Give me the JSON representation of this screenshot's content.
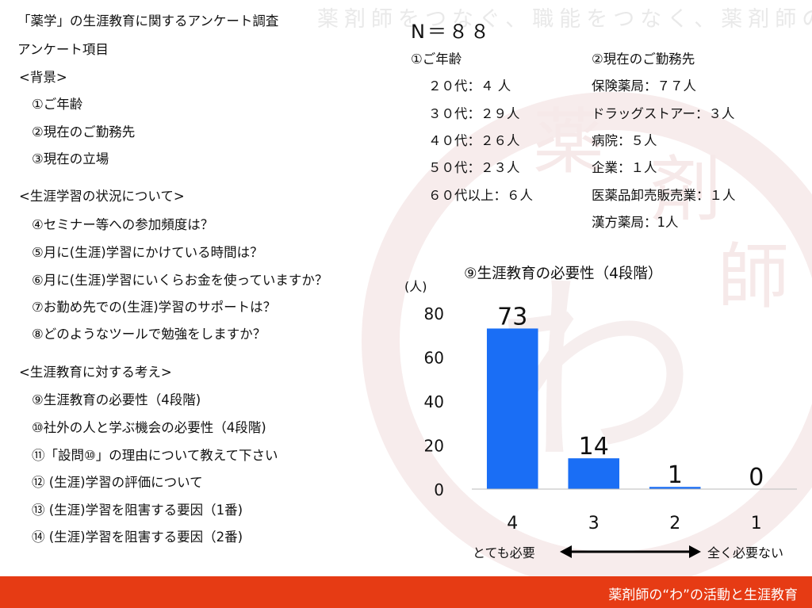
{
  "watermark": {
    "slogan": "薬剤師をつなぐ、職能をつなく、薬剤師の繋がり“わ”をつくりたい",
    "logo_chars": [
      "薬",
      "剤",
      "師",
      "わ"
    ]
  },
  "survey": {
    "title": "「薬学」の生涯教育に関するアンケート調査",
    "items_header": "アンケート項目",
    "sections": [
      {
        "heading": "<背景>",
        "items": [
          "①ご年齢",
          "②現在のご勤務先",
          "③現在の立場"
        ]
      },
      {
        "heading": "<生涯学習の状況について>",
        "items": [
          "④セミナー等への参加頻度は？",
          "⑤月に(生涯)学習にかけている時間は？",
          "⑥月に(生涯)学習にいくらお金を使っていますか？",
          "⑦お勤め先での(生涯)学習のサポートは？",
          "⑧どのようなツールで勉強をしますか？"
        ]
      },
      {
        "heading": "<生涯教育に対する考え>",
        "items": [
          "⑨生涯教育の必要性（4段階)",
          "⑩社外の人と学ぶ機会の必要性（4段階)",
          "⑪「設問⑩」の理由について教えて下さい",
          "⑫ (生涯)学習の評価について",
          "⑬ (生涯)学習を阻害する要因（1番)",
          "⑭ (生涯)学習を阻害する要因（2番)"
        ]
      }
    ]
  },
  "respondents": {
    "n_label": "N＝８８",
    "age": {
      "heading": "①ご年齢",
      "rows": [
        "２０代：４ 人",
        "３０代：２９人",
        "４０代：２６人",
        "５０代：２３人",
        "６０代以上：６人"
      ]
    },
    "workplace": {
      "heading": "②現在のご勤務先",
      "rows": [
        "保険薬局：７７人",
        "ドラッグストアー：３人",
        "病院：５人",
        "企業：１人",
        "医薬品卸売販売業：１人",
        "漢方薬局：1人"
      ]
    }
  },
  "chart_data": {
    "type": "bar",
    "title": "⑨生涯教育の必要性（4段階）",
    "ylabel": "(人)",
    "categories": [
      "4",
      "3",
      "2",
      "1"
    ],
    "values": [
      73,
      14,
      1,
      0
    ],
    "ylim": [
      0,
      80
    ],
    "yticks": [
      0,
      20,
      40,
      60,
      80
    ],
    "grid": false,
    "bar_color": "#1a6ef5",
    "scale_left_label": "とても必要",
    "scale_right_label": "全く必要ない"
  },
  "footer": {
    "text": "薬剤師の“わ”の活動と生涯教育",
    "color": "#e63b14"
  }
}
